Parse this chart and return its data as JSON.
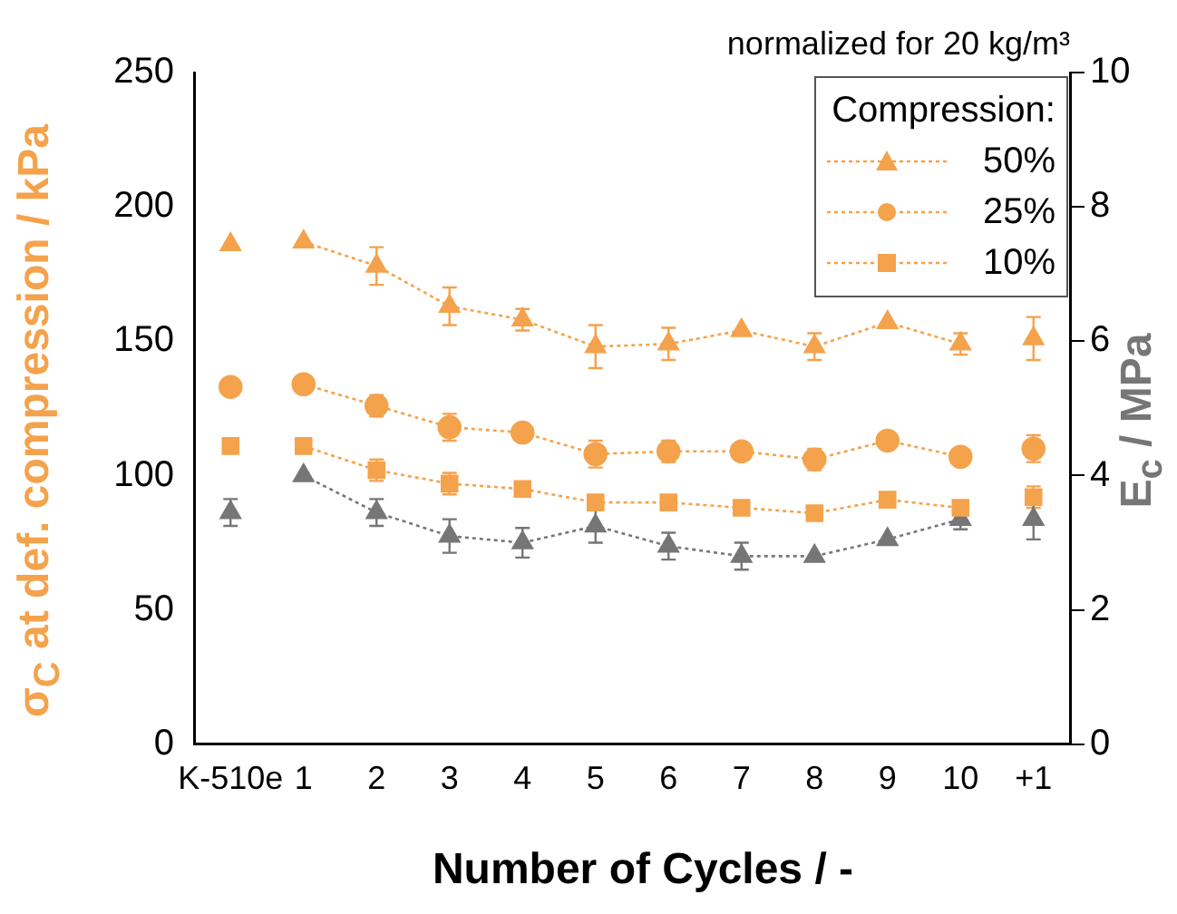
{
  "chart_data": {
    "type": "line",
    "subtitle": "normalized for 20 kg/m³",
    "xlabel": "Number of Cycles / -",
    "ylabel": "σ$_{C}$ at def. compression / kPa",
    "y2label": "E$_{c}$  / MPa",
    "legend_title": "Compression:",
    "legend": "top right",
    "grid": false,
    "line_style": "dotted",
    "categories": [
      "K-510e",
      "1",
      "2",
      "3",
      "4",
      "5",
      "6",
      "7",
      "8",
      "9",
      "10",
      "+1"
    ],
    "ylim": [
      0,
      250
    ],
    "yticks": [
      0,
      50,
      100,
      150,
      200,
      250
    ],
    "y2lim": [
      0,
      10
    ],
    "y2ticks": [
      0,
      2,
      4,
      6,
      8,
      10
    ],
    "series": [
      {
        "name": "50%",
        "color": "#f4a24c",
        "marker": "triangle",
        "values": [
          null,
          187,
          178,
          163,
          158,
          148,
          149,
          154,
          148,
          157,
          149,
          null
        ],
        "errors": [
          null,
          null,
          7,
          7,
          4,
          8,
          6,
          null,
          5,
          null,
          4,
          null
        ]
      },
      {
        "name": "25%",
        "color": "#f4a24c",
        "marker": "circle",
        "values": [
          null,
          134,
          126,
          118,
          116,
          108,
          109,
          109,
          106,
          113,
          107,
          null
        ],
        "errors": [
          null,
          null,
          4,
          5,
          null,
          5,
          4,
          null,
          4,
          null,
          null,
          null
        ]
      },
      {
        "name": "10%",
        "color": "#f4a24c",
        "marker": "square",
        "values": [
          null,
          111,
          102,
          97,
          95,
          90,
          90,
          88,
          86,
          91,
          88,
          null
        ],
        "errors": [
          null,
          null,
          4,
          4,
          null,
          null,
          null,
          null,
          null,
          null,
          null,
          null
        ]
      },
      {
        "color": "#767676",
        "marker": "triangle",
        "axis": "y2",
        "values": [
          null,
          4.0,
          3.45,
          3.1,
          3.0,
          3.25,
          2.95,
          2.8,
          2.8,
          3.05,
          3.35,
          null
        ],
        "errors": [
          null,
          null,
          0.2,
          0.25,
          0.22,
          0.25,
          0.2,
          0.2,
          null,
          null,
          0.15,
          null
        ]
      },
      {
        "type": "scatter",
        "color": "#f4a24c",
        "marker": "triangle",
        "values": [
          186,
          null,
          null,
          null,
          null,
          null,
          null,
          null,
          null,
          null,
          null,
          151
        ],
        "errors": [
          null,
          null,
          null,
          null,
          null,
          null,
          null,
          null,
          null,
          null,
          null,
          8
        ]
      },
      {
        "type": "scatter",
        "color": "#f4a24c",
        "marker": "circle",
        "values": [
          133,
          null,
          null,
          null,
          null,
          null,
          null,
          null,
          null,
          null,
          null,
          110
        ],
        "errors": [
          null,
          null,
          null,
          null,
          null,
          null,
          null,
          null,
          null,
          null,
          null,
          5
        ]
      },
      {
        "type": "scatter",
        "color": "#f4a24c",
        "marker": "square",
        "values": [
          111,
          null,
          null,
          null,
          null,
          null,
          null,
          null,
          null,
          null,
          null,
          92
        ],
        "errors": [
          null,
          null,
          null,
          null,
          null,
          null,
          null,
          null,
          null,
          null,
          null,
          4
        ]
      },
      {
        "type": "scatter",
        "color": "#767676",
        "marker": "triangle",
        "axis": "y2",
        "values": [
          3.45,
          null,
          null,
          null,
          null,
          null,
          null,
          null,
          null,
          null,
          null,
          3.35
        ],
        "errors": [
          0.2,
          null,
          null,
          null,
          null,
          null,
          null,
          null,
          null,
          null,
          null,
          0.3
        ]
      }
    ]
  }
}
